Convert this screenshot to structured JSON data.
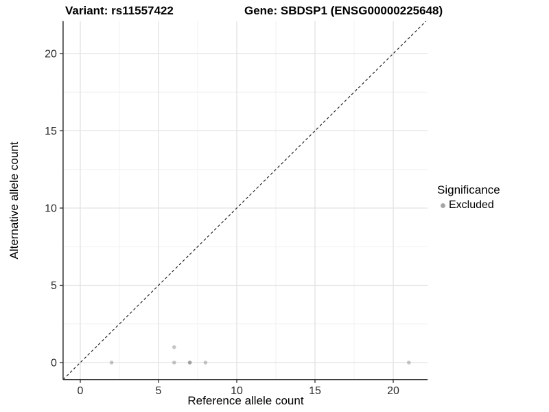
{
  "chart_data": {
    "type": "scatter",
    "title_left": "Variant: rs11557422",
    "title_right": "Gene: SBDSP1 (ENSG00000225648)",
    "xlabel": "Reference allele count",
    "ylabel": "Alternative allele count",
    "xlim": [
      -1.1,
      22.2
    ],
    "ylim": [
      -1.1,
      22.1
    ],
    "x_ticks": [
      0,
      5,
      10,
      15,
      20
    ],
    "y_ticks": [
      0,
      5,
      10,
      15,
      20
    ],
    "x_minor": [
      2.5,
      7.5,
      12.5,
      17.5
    ],
    "y_minor": [
      2.5,
      7.5,
      12.5,
      17.5
    ],
    "points": [
      [
        2,
        0
      ],
      [
        6,
        0
      ],
      [
        6,
        1
      ],
      [
        7,
        0
      ],
      [
        7,
        0
      ],
      [
        8,
        0
      ],
      [
        21,
        0
      ]
    ],
    "point_color": "#707070",
    "point_opacity": 0.4,
    "identity_line": {
      "style": "dashed",
      "color": "#141414"
    },
    "grid": {
      "major_color": "#e2e2e2",
      "minor_color": "#f0f0f0",
      "background": "#ffffff"
    },
    "axis_color": "#2e2e2e",
    "tick_label_color": "#2b2b2b",
    "legend": {
      "title": "Significance",
      "items": [
        {
          "label": "Excluded",
          "color": "#a6a6a6"
        }
      ]
    }
  }
}
